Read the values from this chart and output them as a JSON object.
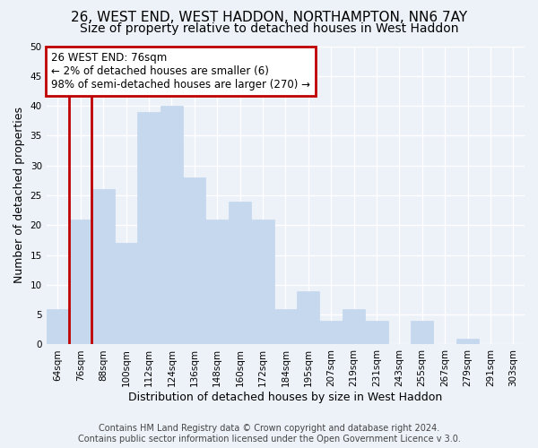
{
  "title": "26, WEST END, WEST HADDON, NORTHAMPTON, NN6 7AY",
  "subtitle": "Size of property relative to detached houses in West Haddon",
  "xlabel": "Distribution of detached houses by size in West Haddon",
  "ylabel": "Number of detached properties",
  "footer_line1": "Contains HM Land Registry data © Crown copyright and database right 2024.",
  "footer_line2": "Contains public sector information licensed under the Open Government Licence v 3.0.",
  "bin_labels": [
    "64sqm",
    "76sqm",
    "88sqm",
    "100sqm",
    "112sqm",
    "124sqm",
    "136sqm",
    "148sqm",
    "160sqm",
    "172sqm",
    "184sqm",
    "195sqm",
    "207sqm",
    "219sqm",
    "231sqm",
    "243sqm",
    "255sqm",
    "267sqm",
    "279sqm",
    "291sqm",
    "303sqm"
  ],
  "bin_values": [
    6,
    21,
    26,
    17,
    39,
    40,
    28,
    21,
    24,
    21,
    6,
    9,
    4,
    6,
    4,
    0,
    4,
    0,
    1,
    0,
    0
  ],
  "highlight_bin_index": 1,
  "highlight_color": "#c00000",
  "bar_color": "#c5d8ee",
  "annotation_text": "26 WEST END: 76sqm\n← 2% of detached houses are smaller (6)\n98% of semi-detached houses are larger (270) →",
  "annotation_box_edge_color": "#c00000",
  "ylim": [
    0,
    50
  ],
  "yticks": [
    0,
    5,
    10,
    15,
    20,
    25,
    30,
    35,
    40,
    45,
    50
  ],
  "background_color": "#edf2f9",
  "grid_color": "#ffffff",
  "title_fontsize": 11,
  "subtitle_fontsize": 10,
  "axis_label_fontsize": 9,
  "tick_fontsize": 7.5,
  "footer_fontsize": 7
}
